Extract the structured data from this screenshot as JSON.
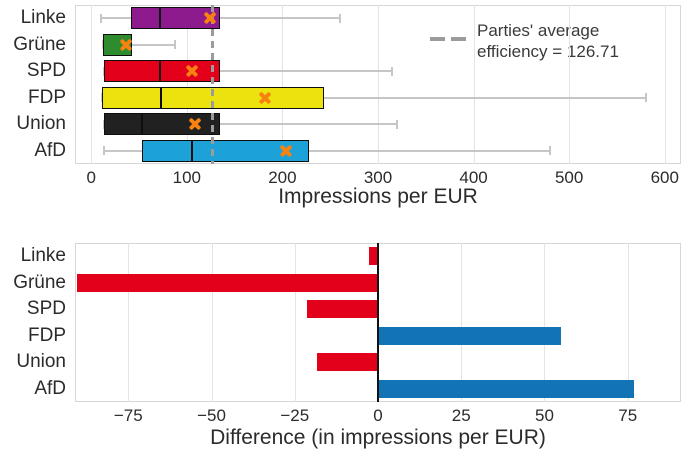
{
  "chart_data": [
    {
      "type": "boxplot",
      "orientation": "horizontal",
      "xlabel": "Impressions per EUR",
      "xlim": [
        -17,
        617
      ],
      "grid": true,
      "x_ticks": [
        {
          "v": 0,
          "label": "0"
        },
        {
          "v": 100,
          "label": "100"
        },
        {
          "v": 200,
          "label": "200"
        },
        {
          "v": 300,
          "label": "300"
        },
        {
          "v": 400,
          "label": "400"
        },
        {
          "v": 500,
          "label": "500"
        },
        {
          "v": 600,
          "label": "600"
        }
      ],
      "legend": {
        "line1": "Parties' average",
        "line2": "efficiency = 126.71",
        "position": "upper right",
        "sample_style": "dashed",
        "sample_color": "#9b9b9b"
      },
      "average_line": {
        "value": 126.71,
        "color": "#9b9b9b",
        "style": "dashed"
      },
      "mean_marker": {
        "shape": "X",
        "color": "#f8820f"
      },
      "whisker_color": "#c6c6c6",
      "series": [
        {
          "party": "Linke",
          "color": "#8e1b8e",
          "whisker_low": 10,
          "q1": 42,
          "median": 72,
          "q3": 135,
          "whisker_high": 260,
          "mean": 124.1
        },
        {
          "party": "Grüne",
          "color": "#2e8b2e",
          "whisker_low": 12,
          "q1": 12,
          "median": null,
          "q3": 43,
          "whisker_high": 88,
          "mean": 36.2
        },
        {
          "party": "SPD",
          "color": "#e3001b",
          "whisker_low": 13,
          "q1": 13,
          "median": 72,
          "q3": 135,
          "whisker_high": 315,
          "mean": 105.4
        },
        {
          "party": "FDP",
          "color": "#ece20e",
          "whisker_low": 11,
          "q1": 11,
          "median": 73,
          "q3": 243,
          "whisker_high": 580,
          "mean": 181.7
        },
        {
          "party": "Union",
          "color": "#212121",
          "whisker_low": 13,
          "q1": 13,
          "median": 53,
          "q3": 135,
          "whisker_high": 320,
          "mean": 108.4
        },
        {
          "party": "AfD",
          "color": "#1da2d8",
          "whisker_low": 13,
          "q1": 53,
          "median": 105,
          "q3": 228,
          "whisker_high": 480,
          "mean": 203.7
        }
      ]
    },
    {
      "type": "bar",
      "orientation": "horizontal",
      "xlabel": "Difference (in impressions per EUR)",
      "xlim": [
        -91,
        91
      ],
      "grid": true,
      "zero_line": true,
      "negative_color": "#e3001b",
      "positive_color": "#1274b5",
      "x_ticks": [
        {
          "v": -75,
          "label": "−75"
        },
        {
          "v": -50,
          "label": "−50"
        },
        {
          "v": -25,
          "label": "−25"
        },
        {
          "v": 0,
          "label": "0"
        },
        {
          "v": 25,
          "label": "25"
        },
        {
          "v": 50,
          "label": "50"
        },
        {
          "v": 75,
          "label": "75"
        }
      ],
      "bars": [
        {
          "party": "Linke",
          "value": -2.6,
          "color": "#e3001b"
        },
        {
          "party": "Grüne",
          "value": -90.5,
          "color": "#e3001b"
        },
        {
          "party": "SPD",
          "value": -21.3,
          "color": "#e3001b"
        },
        {
          "party": "FDP",
          "value": 55.0,
          "color": "#1274b5"
        },
        {
          "party": "Union",
          "value": -18.3,
          "color": "#e3001b"
        },
        {
          "party": "AfD",
          "value": 77.0,
          "color": "#1274b5"
        }
      ]
    }
  ]
}
